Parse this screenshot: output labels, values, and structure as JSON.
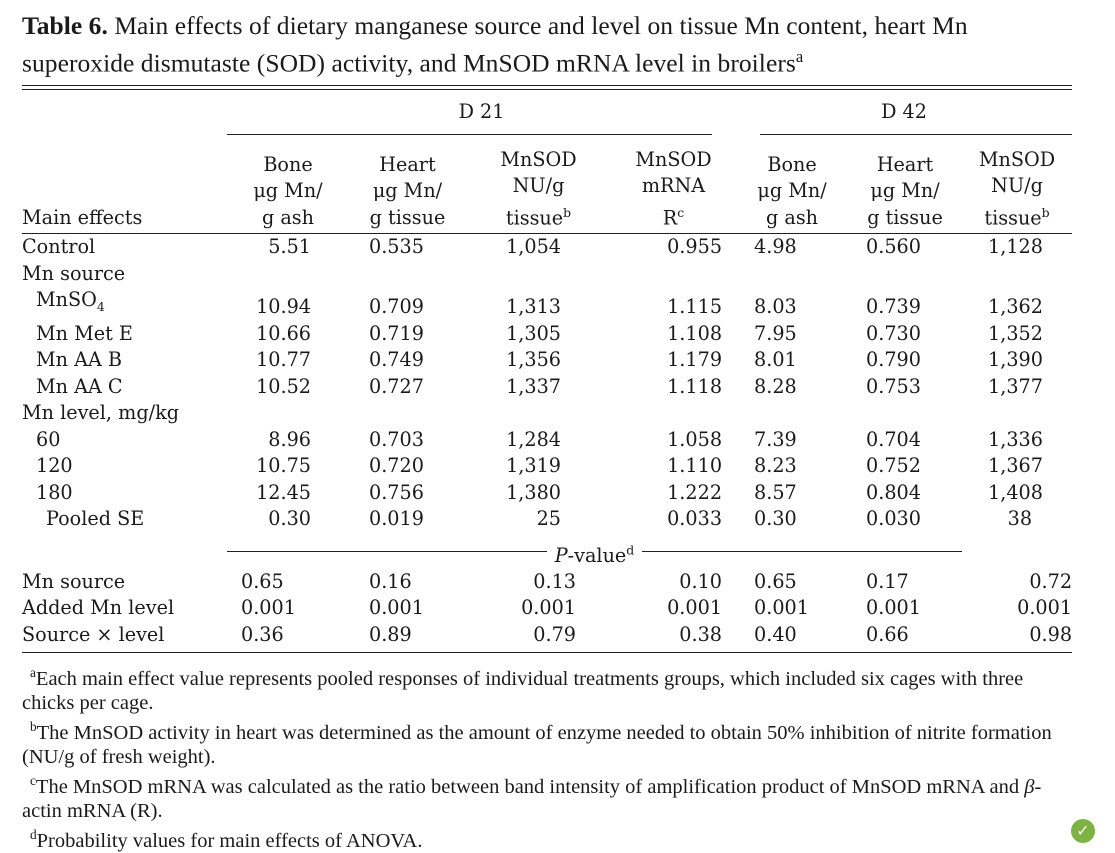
{
  "caption": {
    "label": "Table 6.",
    "text": " Main effects of dietary manganese source and level on tissue Mn content, heart Mn superoxide dismutaste (SOD) activity, and MnSOD mRNA level in broilers",
    "sup": "a"
  },
  "groups": {
    "d21": "D 21",
    "d42": "D 42"
  },
  "columns": {
    "first": "Main effects",
    "c1": [
      "Bone",
      "μg Mn/",
      "g ash"
    ],
    "c2": [
      "Heart",
      "μg Mn/",
      "g tissue"
    ],
    "c3": [
      "MnSOD",
      "NU/g",
      "tissue",
      "b"
    ],
    "c4": [
      "MnSOD",
      "mRNA",
      "R",
      "c"
    ],
    "c5": [
      "Bone",
      "μg Mn/",
      "g ash"
    ],
    "c6": [
      "Heart",
      "μg Mn/",
      "g tissue"
    ],
    "c7": [
      "MnSOD",
      "NU/g",
      "tissue",
      "b"
    ]
  },
  "rows": [
    {
      "label": "Control",
      "values": [
        "5.51",
        "0.535",
        "1,054",
        "0.955",
        "4.98",
        "0.560",
        "1,128"
      ]
    },
    {
      "label": "Mn source",
      "values": [
        "",
        "",
        "",
        "",
        "",
        "",
        ""
      ]
    },
    {
      "label": "MnSO",
      "sub": "4",
      "values": [
        "10.94",
        "0.709",
        "1,313",
        "1.115",
        "8.03",
        "0.739",
        "1,362"
      ]
    },
    {
      "label": "Mn Met E",
      "values": [
        "10.66",
        "0.719",
        "1,305",
        "1.108",
        "7.95",
        "0.730",
        "1,352"
      ]
    },
    {
      "label": "Mn AA B",
      "values": [
        "10.77",
        "0.749",
        "1,356",
        "1.179",
        "8.01",
        "0.790",
        "1,390"
      ]
    },
    {
      "label": "Mn AA C",
      "values": [
        "10.52",
        "0.727",
        "1,337",
        "1.118",
        "8.28",
        "0.753",
        "1,377"
      ]
    },
    {
      "label": "Mn level, mg/kg",
      "values": [
        "",
        "",
        "",
        "",
        "",
        "",
        ""
      ]
    },
    {
      "label": "60",
      "values": [
        "8.96",
        "0.703",
        "1,284",
        "1.058",
        "7.39",
        "0.704",
        "1,336"
      ]
    },
    {
      "label": "120",
      "values": [
        "10.75",
        "0.720",
        "1,319",
        "1.110",
        "8.23",
        "0.752",
        "1,367"
      ]
    },
    {
      "label": "180",
      "values": [
        "12.45",
        "0.756",
        "1,380",
        "1.222",
        "8.57",
        "0.804",
        "1,408"
      ]
    },
    {
      "label": "Pooled SE",
      "values": [
        "0.30",
        "0.019",
        "25",
        "0.033",
        "0.30",
        "0.030",
        "38"
      ]
    }
  ],
  "pvalue_label": {
    "italic": "P",
    "rest": "-value",
    "sup": "d"
  },
  "prows": [
    {
      "label": "Mn source",
      "values": [
        "0.65",
        "0.16",
        "0.13",
        "0.10",
        "0.65",
        "0.17",
        "0.72"
      ]
    },
    {
      "label": "Added Mn level",
      "values": [
        "0.001",
        "0.001",
        "0.001",
        "0.001",
        "0.001",
        "0.001",
        "0.001"
      ]
    },
    {
      "label": "Source × level",
      "values": [
        "0.36",
        "0.89",
        "0.79",
        "0.38",
        "0.40",
        "0.66",
        "0.98"
      ]
    }
  ],
  "footnotes": {
    "a_mark": "a",
    "a": "Each main effect value represents pooled responses of individual treatments groups, which included six cages with three chicks per cage.",
    "b_mark": "b",
    "b": "The MnSOD activity in heart was determined as the amount of enzyme needed to obtain 50% inhibition of nitrite formation (NU/g of fresh weight).",
    "c_mark": "c",
    "c1": "The MnSOD mRNA was calculated as the ratio between band intensity of amplification product of MnSOD mRNA and ",
    "c_beta": "β",
    "c2": "-actin mRNA (R).",
    "d_mark": "d",
    "d": "Probability values for main effects of ANOVA."
  },
  "logo_icon": "leaf-logo-icon"
}
